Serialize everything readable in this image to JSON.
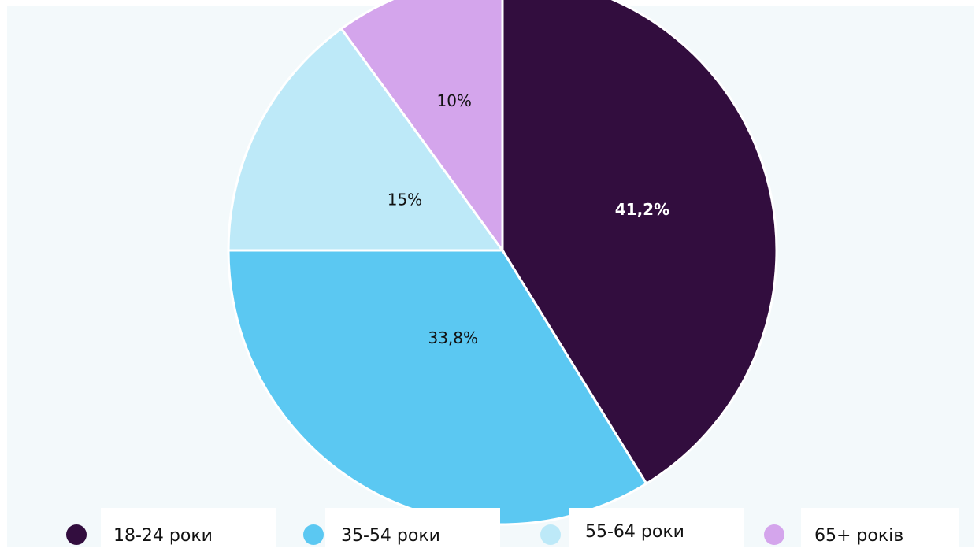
{
  "chart_data": {
    "type": "pie",
    "title": "",
    "slices": [
      {
        "label": "18-24 роки",
        "value": 41.2,
        "display": "41,2%",
        "color": "#320d3e",
        "text_color": "#ffffff",
        "bold": true
      },
      {
        "label": "35-54 роки",
        "value": 33.8,
        "display": "33,8%",
        "color": "#5bc8f2",
        "text_color": "#111111",
        "bold": false
      },
      {
        "label": "55-64 роки",
        "value": 15,
        "display": "15%",
        "color": "#bde9f8",
        "text_color": "#111111",
        "bold": false
      },
      {
        "label": "65+ років",
        "value": 10,
        "display": "10%",
        "color": "#d4a5ec",
        "text_color": "#111111",
        "bold": false
      }
    ],
    "start_angle": "12 o'clock",
    "direction": "clockwise",
    "legend_position": "bottom"
  }
}
